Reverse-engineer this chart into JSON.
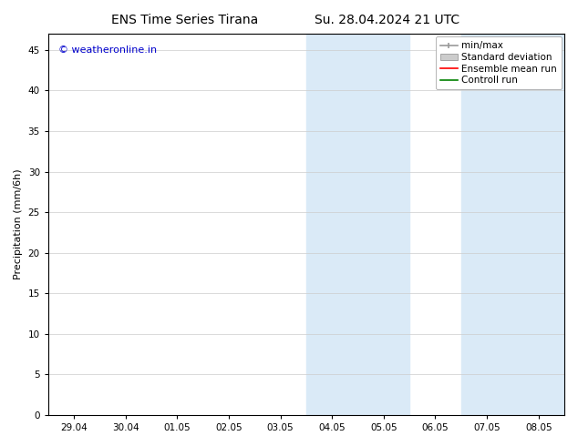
{
  "title_left": "ENS Time Series Tirana",
  "title_right": "Su. 28.04.2024 21 UTC",
  "ylabel": "Precipitation (mm/6h)",
  "ylim": [
    0,
    47
  ],
  "yticks": [
    0,
    5,
    10,
    15,
    20,
    25,
    30,
    35,
    40,
    45
  ],
  "xlim": [
    -0.5,
    9.5
  ],
  "xtick_positions": [
    0,
    1,
    2,
    3,
    4,
    5,
    6,
    7,
    8,
    9
  ],
  "xtick_labels": [
    "29.04",
    "30.04",
    "01.05",
    "02.05",
    "03.05",
    "04.05",
    "05.05",
    "06.05",
    "07.05",
    "08.05"
  ],
  "shaded_regions": [
    {
      "xmin": 4.5,
      "xmax": 6.5
    },
    {
      "xmin": 7.5,
      "xmax": 9.5
    }
  ],
  "shaded_color": "#daeaf7",
  "background_color": "#ffffff",
  "grid_color": "#cccccc",
  "watermark_text": "© weatheronline.in",
  "watermark_color": "#0000cc",
  "legend_items": [
    {
      "label": "min/max",
      "color": "#999999",
      "style": "errorbar"
    },
    {
      "label": "Standard deviation",
      "color": "#cccccc",
      "style": "box"
    },
    {
      "label": "Ensemble mean run",
      "color": "#ff0000",
      "style": "line"
    },
    {
      "label": "Controll run",
      "color": "#008000",
      "style": "line"
    }
  ],
  "title_fontsize": 10,
  "tick_fontsize": 7.5,
  "legend_fontsize": 7.5,
  "ylabel_fontsize": 8,
  "watermark_fontsize": 8
}
